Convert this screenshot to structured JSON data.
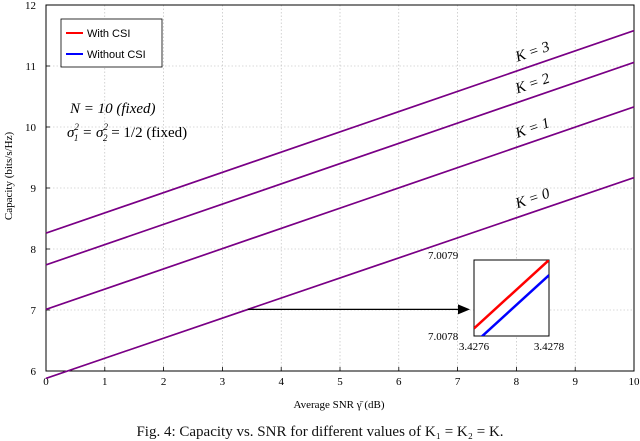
{
  "chart_data": {
    "type": "line",
    "xlabel": "Average SNR γ̄ (dB)",
    "ylabel": "Capacity (bits/s/Hz)",
    "xlim": [
      0,
      10
    ],
    "ylim": [
      6,
      12
    ],
    "xticks": [
      0,
      1,
      2,
      3,
      4,
      5,
      6,
      7,
      8,
      9,
      10
    ],
    "yticks": [
      6,
      7,
      8,
      9,
      10,
      11,
      12
    ],
    "grid": true,
    "legend_position": "top-left",
    "legend": [
      {
        "label": "With CSI",
        "color": "#ff0000"
      },
      {
        "label": "Without CSI",
        "color": "#0000ff"
      }
    ],
    "series": [
      {
        "name": "K = 0",
        "x": [
          0,
          10
        ],
        "y": [
          5.88,
          9.17
        ]
      },
      {
        "name": "K = 1",
        "x": [
          0,
          10
        ],
        "y": [
          7.01,
          10.33
        ]
      },
      {
        "name": "K = 2",
        "x": [
          0,
          10
        ],
        "y": [
          7.74,
          11.06
        ]
      },
      {
        "name": "K = 3",
        "x": [
          0,
          10
        ],
        "y": [
          8.26,
          11.58
        ]
      }
    ],
    "annotations": {
      "param_n": "N  =  10   (fixed)",
      "param_sigma_main": "σ",
      "param_sigma_rest": "  =  σ",
      "param_sigma_value": "  =  1/2   (fixed)",
      "arrow_from": {
        "x": 3.43,
        "y": 7.01
      }
    },
    "inset": {
      "xlim": [
        3.4276,
        3.4278
      ],
      "ylim": [
        7.0078,
        7.0079
      ],
      "x_ticks": [
        "3.4276",
        "3.4278"
      ],
      "y_ticks": [
        "7.0079",
        "7.0078"
      ],
      "with_csi": {
        "x": [
          3.4276,
          3.4278
        ],
        "y": [
          7.00781,
          7.0079
        ]
      },
      "without_csi": {
        "x": [
          3.4276,
          3.4278
        ],
        "y": [
          7.00779,
          7.00788
        ]
      }
    }
  },
  "caption": "Fig. 4: Capacity vs. SNR for different values of K₁ = K₂ = K."
}
